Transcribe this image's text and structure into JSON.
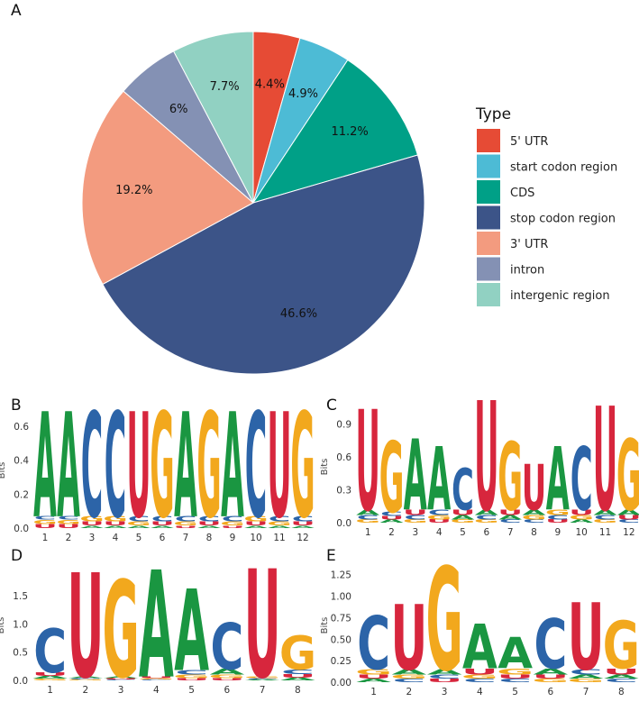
{
  "colors": {
    "A": "#1a9641",
    "C": "#2c64a8",
    "G": "#f2a81d",
    "U": "#d7263d"
  },
  "chart_data": [
    {
      "panel": "A",
      "type": "pie",
      "legend_title": "Type",
      "legend_position": "right",
      "slices": [
        {
          "label": "5' UTR",
          "value": 4.4,
          "display": "4.4%",
          "color": "#e64b35"
        },
        {
          "label": "start codon region",
          "value": 4.9,
          "display": "4.9%",
          "color": "#4dbbd5"
        },
        {
          "label": "CDS",
          "value": 11.2,
          "display": "11.2%",
          "color": "#00a087"
        },
        {
          "label": "stop codon region",
          "value": 46.6,
          "display": "46.6%",
          "color": "#3c5488"
        },
        {
          "label": "3' UTR",
          "value": 19.2,
          "display": "19.2%",
          "color": "#f39b7f"
        },
        {
          "label": "intron",
          "value": 6.0,
          "display": "6%",
          "color": "#8491b4"
        },
        {
          "label": "intergenic region",
          "value": 7.7,
          "display": "7.7%",
          "color": "#91d1c2"
        }
      ]
    },
    {
      "panel": "B",
      "type": "sequence-logo",
      "ylabel": "Bits",
      "ylim": [
        0,
        0.68
      ],
      "yticks": [
        "0.0",
        "0.2",
        "0.4",
        "0.6"
      ],
      "ytick_values": [
        0,
        0.2,
        0.4,
        0.6
      ],
      "positions": [
        "1",
        "2",
        "3",
        "4",
        "5",
        "6",
        "7",
        "8",
        "9",
        "10",
        "11",
        "12"
      ],
      "stacks": [
        [
          [
            "U",
            0.025
          ],
          [
            "G",
            0.025
          ],
          [
            "C",
            0.02
          ],
          [
            "A",
            0.62
          ]
        ],
        [
          [
            "U",
            0.025
          ],
          [
            "G",
            0.025
          ],
          [
            "C",
            0.02
          ],
          [
            "A",
            0.62
          ]
        ],
        [
          [
            "A",
            0.015
          ],
          [
            "U",
            0.025
          ],
          [
            "G",
            0.03
          ],
          [
            "C",
            0.62
          ]
        ],
        [
          [
            "A",
            0.015
          ],
          [
            "U",
            0.025
          ],
          [
            "G",
            0.03
          ],
          [
            "C",
            0.62
          ]
        ],
        [
          [
            "A",
            0.015
          ],
          [
            "G",
            0.025
          ],
          [
            "C",
            0.03
          ],
          [
            "U",
            0.62
          ]
        ],
        [
          [
            "A",
            0.015
          ],
          [
            "U",
            0.025
          ],
          [
            "C",
            0.03
          ],
          [
            "G",
            0.62
          ]
        ],
        [
          [
            "U",
            0.015
          ],
          [
            "G",
            0.025
          ],
          [
            "C",
            0.03
          ],
          [
            "A",
            0.62
          ]
        ],
        [
          [
            "A",
            0.015
          ],
          [
            "U",
            0.025
          ],
          [
            "C",
            0.03
          ],
          [
            "G",
            0.62
          ]
        ],
        [
          [
            "U",
            0.015
          ],
          [
            "G",
            0.025
          ],
          [
            "C",
            0.03
          ],
          [
            "A",
            0.62
          ]
        ],
        [
          [
            "A",
            0.015
          ],
          [
            "U",
            0.025
          ],
          [
            "G",
            0.03
          ],
          [
            "C",
            0.62
          ]
        ],
        [
          [
            "A",
            0.015
          ],
          [
            "G",
            0.025
          ],
          [
            "C",
            0.03
          ],
          [
            "U",
            0.62
          ]
        ],
        [
          [
            "A",
            0.015
          ],
          [
            "U",
            0.025
          ],
          [
            "C",
            0.03
          ],
          [
            "G",
            0.62
          ]
        ]
      ]
    },
    {
      "panel": "C",
      "type": "sequence-logo",
      "ylabel": "Bits",
      "ylim": [
        0,
        1.02
      ],
      "yticks": [
        "0.0",
        "0.3",
        "0.6",
        "0.9"
      ],
      "ytick_values": [
        0,
        0.3,
        0.6,
        0.9
      ],
      "positions": [
        "1",
        "2",
        "3",
        "4",
        "5",
        "6",
        "7",
        "8",
        "9",
        "10",
        "11",
        "12"
      ],
      "stacks": [
        [
          [
            "G",
            0.03
          ],
          [
            "C",
            0.04
          ],
          [
            "A",
            0.05
          ],
          [
            "U",
            0.92
          ]
        ],
        [
          [
            "A",
            0.03
          ],
          [
            "U",
            0.03
          ],
          [
            "C",
            0.04
          ],
          [
            "G",
            0.65
          ]
        ],
        [
          [
            "G",
            0.03
          ],
          [
            "C",
            0.04
          ],
          [
            "U",
            0.05
          ],
          [
            "A",
            0.65
          ]
        ],
        [
          [
            "U",
            0.03
          ],
          [
            "G",
            0.04
          ],
          [
            "C",
            0.05
          ],
          [
            "A",
            0.58
          ]
        ],
        [
          [
            "G",
            0.03
          ],
          [
            "A",
            0.04
          ],
          [
            "U",
            0.05
          ],
          [
            "C",
            0.38
          ]
        ],
        [
          [
            "G",
            0.03
          ],
          [
            "C",
            0.04
          ],
          [
            "A",
            0.05
          ],
          [
            "U",
            1.0
          ]
        ],
        [
          [
            "C",
            0.03
          ],
          [
            "A",
            0.04
          ],
          [
            "U",
            0.05
          ],
          [
            "G",
            0.62
          ]
        ],
        [
          [
            "C",
            0.03
          ],
          [
            "G",
            0.04
          ],
          [
            "A",
            0.05
          ],
          [
            "U",
            0.42
          ]
        ],
        [
          [
            "U",
            0.03
          ],
          [
            "C",
            0.04
          ],
          [
            "G",
            0.05
          ],
          [
            "A",
            0.58
          ]
        ],
        [
          [
            "A",
            0.03
          ],
          [
            "G",
            0.04
          ],
          [
            "U",
            0.05
          ],
          [
            "C",
            0.58
          ]
        ],
        [
          [
            "G",
            0.03
          ],
          [
            "C",
            0.04
          ],
          [
            "A",
            0.05
          ],
          [
            "U",
            0.95
          ]
        ],
        [
          [
            "C",
            0.03
          ],
          [
            "U",
            0.04
          ],
          [
            "A",
            0.05
          ],
          [
            "G",
            0.65
          ]
        ]
      ]
    },
    {
      "panel": "D",
      "type": "sequence-logo",
      "ylabel": "Bits",
      "ylim": [
        0,
        1.95
      ],
      "yticks": [
        "0.0",
        "0.5",
        "1.0",
        "1.5"
      ],
      "ytick_values": [
        0,
        0.5,
        1.0,
        1.5
      ],
      "positions": [
        "1",
        "2",
        "3",
        "4",
        "5",
        "6",
        "7",
        "8"
      ],
      "stacks": [
        [
          [
            "G",
            0.03
          ],
          [
            "A",
            0.05
          ],
          [
            "U",
            0.06
          ],
          [
            "C",
            0.78
          ]
        ],
        [
          [
            "G",
            0.02
          ],
          [
            "C",
            0.02
          ],
          [
            "A",
            0.03
          ],
          [
            "U",
            1.85
          ]
        ],
        [
          [
            "C",
            0.02
          ],
          [
            "U",
            0.02
          ],
          [
            "A",
            0.03
          ],
          [
            "G",
            1.72
          ]
        ],
        [
          [
            "C",
            0.02
          ],
          [
            "G",
            0.02
          ],
          [
            "U",
            0.03
          ],
          [
            "A",
            1.9
          ]
        ],
        [
          [
            "U",
            0.04
          ],
          [
            "G",
            0.06
          ],
          [
            "C",
            0.08
          ],
          [
            "A",
            1.45
          ]
        ],
        [
          [
            "U",
            0.04
          ],
          [
            "G",
            0.06
          ],
          [
            "A",
            0.1
          ],
          [
            "C",
            0.82
          ]
        ],
        [
          [
            "A",
            0.02
          ],
          [
            "C",
            0.02
          ],
          [
            "G",
            0.03
          ],
          [
            "U",
            1.92
          ]
        ],
        [
          [
            "A",
            0.05
          ],
          [
            "U",
            0.06
          ],
          [
            "C",
            0.08
          ],
          [
            "G",
            0.6
          ]
        ]
      ]
    },
    {
      "panel": "E",
      "type": "sequence-logo",
      "ylabel": "Bits",
      "ylim": [
        0,
        1.32
      ],
      "yticks": [
        "0.00",
        "0.25",
        "0.50",
        "0.75",
        "1.00",
        "1.25"
      ],
      "ytick_values": [
        0,
        0.25,
        0.5,
        0.75,
        1.0,
        1.25
      ],
      "positions": [
        "1",
        "2",
        "3",
        "4",
        "5",
        "6",
        "7",
        "8"
      ],
      "stacks": [
        [
          [
            "A",
            0.04
          ],
          [
            "U",
            0.05
          ],
          [
            "G",
            0.06
          ],
          [
            "C",
            0.62
          ]
        ],
        [
          [
            "C",
            0.04
          ],
          [
            "G",
            0.05
          ],
          [
            "A",
            0.06
          ],
          [
            "U",
            0.76
          ]
        ],
        [
          [
            "U",
            0.04
          ],
          [
            "C",
            0.05
          ],
          [
            "A",
            0.06
          ],
          [
            "G",
            1.2
          ]
        ],
        [
          [
            "C",
            0.04
          ],
          [
            "G",
            0.05
          ],
          [
            "U",
            0.07
          ],
          [
            "A",
            0.52
          ]
        ],
        [
          [
            "C",
            0.04
          ],
          [
            "U",
            0.05
          ],
          [
            "G",
            0.07
          ],
          [
            "A",
            0.36
          ]
        ],
        [
          [
            "G",
            0.04
          ],
          [
            "U",
            0.05
          ],
          [
            "A",
            0.07
          ],
          [
            "C",
            0.58
          ]
        ],
        [
          [
            "G",
            0.04
          ],
          [
            "A",
            0.05
          ],
          [
            "C",
            0.06
          ],
          [
            "U",
            0.78
          ]
        ],
        [
          [
            "C",
            0.04
          ],
          [
            "A",
            0.05
          ],
          [
            "U",
            0.07
          ],
          [
            "G",
            0.55
          ]
        ]
      ]
    }
  ]
}
